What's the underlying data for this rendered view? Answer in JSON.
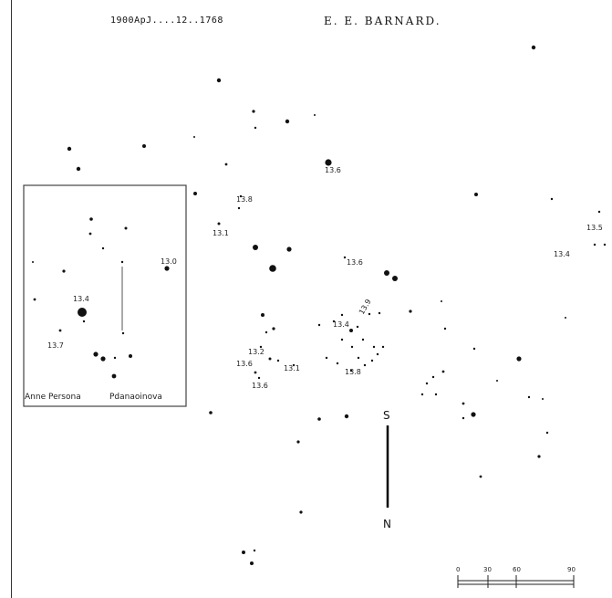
{
  "header": {
    "citation": "1900ApJ....12..1768",
    "author": "E. E. BARNARD."
  },
  "inset": {
    "caption_left": "Anne Persona",
    "caption_right": "Pdanaoinova"
  },
  "orientation": {
    "south": "S",
    "north": "N"
  },
  "scale_bar": {
    "ticks": [
      "0",
      "30",
      "60",
      "90"
    ]
  },
  "star_labels": {
    "inset_a": "13.4",
    "inset_b": "13.0",
    "inset_c": "13.7",
    "l1": "13.6",
    "l2": "13.8",
    "l3": "13.1",
    "l4": "13.5",
    "l5": "13.4",
    "l6": "13.2",
    "l7": "13.6",
    "l8": "13.1",
    "l9": "13.6",
    "l10": "13.8",
    "l11": "13.4",
    "l12": "13.9",
    "l13": "13.6"
  }
}
